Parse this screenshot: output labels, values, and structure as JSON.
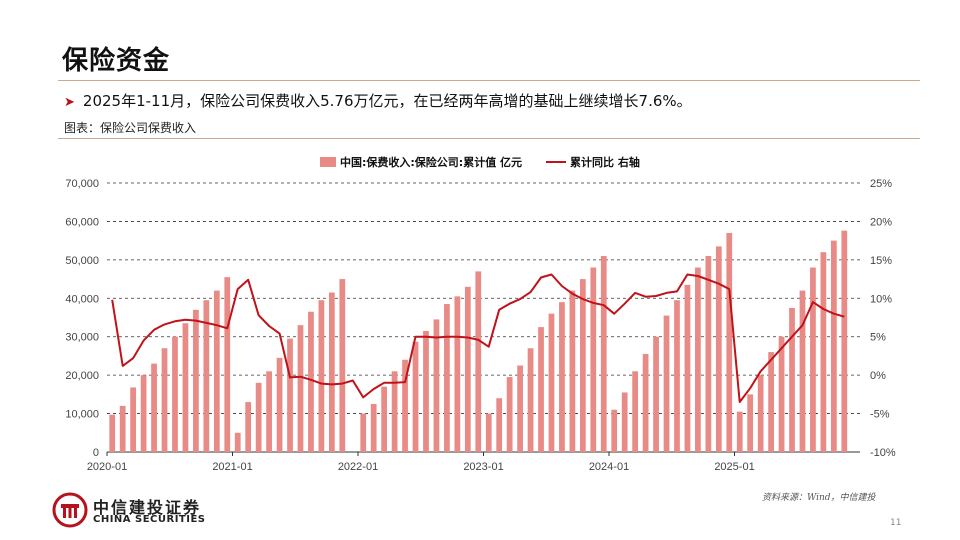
{
  "slide": {
    "title": "保险资金",
    "bullet": "2025年1-11月，保险公司保费收入5.76万亿元，在已经两年高增的基础上继续增长7.6%。",
    "caption": "图表：保险公司保费收入",
    "source": "资料来源：Wind，中信建投",
    "page_number": "11",
    "logo_cn": "中信建投证券",
    "logo_en": "CHINA SECURITIES"
  },
  "colors": {
    "bar": "#e88b87",
    "line": "#c0121a",
    "brand": "#b5121b"
  },
  "chart_data": {
    "type": "bar",
    "title": "",
    "legend_position": "top-center",
    "x_tick_labels": [
      "2020-01",
      "2021-01",
      "2022-01",
      "2023-01",
      "2024-01",
      "2025-01"
    ],
    "y_left": {
      "lim": [
        0,
        70000
      ],
      "ticks": [
        "0",
        "10,000",
        "20,000",
        "30,000",
        "40,000",
        "50,000",
        "60,000",
        "70,000"
      ]
    },
    "y_right": {
      "lim": [
        -10,
        25
      ],
      "ticks": [
        "-10%",
        "-5%",
        "0%",
        "5%",
        "10%",
        "15%",
        "20%",
        "25%"
      ]
    },
    "grid": true,
    "series": [
      {
        "name": "中国:保费收入:保险公司:累计值 亿元",
        "kind": "bar",
        "axis": "left",
        "values": [
          [
            9700,
            12000,
            16800,
            20000,
            23000,
            27000,
            30000,
            33500,
            37000,
            39500,
            42000,
            45500
          ],
          [
            5000,
            13000,
            18000,
            21000,
            24500,
            29500,
            33000,
            36500,
            39500,
            41500,
            45000
          ],
          [
            10000,
            12500,
            17000,
            21000,
            24000,
            28700,
            31500,
            34500,
            38500,
            40500,
            43000,
            47000
          ],
          [
            10000,
            14000,
            19500,
            22500,
            27000,
            32500,
            36000,
            39000,
            42000,
            45000,
            48000,
            51000
          ],
          [
            11000,
            15500,
            21000,
            25500,
            30000,
            35500,
            39500,
            43500,
            48000,
            51000,
            53500,
            57000
          ],
          [
            10500,
            15000,
            20000,
            26000,
            30000,
            37500,
            42000,
            48000,
            52000,
            55000,
            57600
          ]
        ]
      },
      {
        "name": "累计同比 右轴",
        "kind": "line",
        "axis": "right",
        "values": [
          [
            9.8,
            1.2,
            2.2,
            4.5,
            5.9,
            6.6,
            7.0,
            7.2,
            7.1,
            6.8,
            6.5,
            6.1
          ],
          [
            11.2,
            12.4,
            7.8,
            6.4,
            5.4,
            -0.3,
            -0.2,
            -0.6,
            -1.1,
            -1.2,
            -1.1,
            -0.7
          ],
          [
            -2.9,
            -1.8,
            -1.0,
            -1.0,
            -0.9,
            5.0,
            5.0,
            4.9,
            5.0,
            5.0,
            4.9,
            4.6
          ],
          [
            3.7,
            8.5,
            9.3,
            9.9,
            10.8,
            12.7,
            13.1,
            11.6,
            10.6,
            9.9,
            9.4,
            9.1
          ],
          [
            8.0,
            9.3,
            10.7,
            10.2,
            10.3,
            10.7,
            10.9,
            13.1,
            12.9,
            12.4,
            11.9,
            11.2
          ],
          [
            -3.5,
            -1.7,
            0.5,
            2.0,
            3.5,
            5.0,
            6.5,
            9.5,
            8.6,
            8.0,
            7.6
          ]
        ]
      }
    ]
  }
}
